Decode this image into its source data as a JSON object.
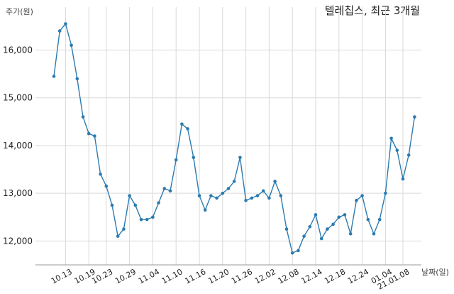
{
  "chart_data": {
    "type": "line",
    "title": "텔레칩스, 최근 3개월",
    "ylabel": "주가(원)",
    "xlabel": "날짜(일)",
    "ylim": [
      11500,
      16900
    ],
    "y_ticks": [
      12000,
      13000,
      14000,
      15000,
      16000
    ],
    "y_tick_labels": [
      "12,000",
      "13,000",
      "14,000",
      "15,000",
      "16,000"
    ],
    "x_tick_labels": [
      "10.13",
      "10.19",
      "10.23",
      "10.29",
      "11.04",
      "11.10",
      "11.16",
      "11.20",
      "11.26",
      "12.02",
      "12.08",
      "12.14",
      "12.18",
      "12.24",
      "01.04",
      "21.01.08"
    ],
    "x_tick_index": [
      2,
      6,
      9,
      13,
      17,
      21,
      25,
      29,
      33,
      37,
      41,
      45,
      49,
      53,
      57,
      60
    ],
    "grid": true,
    "color": "#2b7bb0",
    "values": [
      15450,
      16400,
      16550,
      16100,
      15400,
      14600,
      14250,
      14200,
      13400,
      13150,
      12750,
      12100,
      12250,
      12950,
      12750,
      12450,
      12450,
      12500,
      12800,
      13100,
      13050,
      13700,
      14450,
      14350,
      13750,
      12950,
      12650,
      12950,
      12900,
      13000,
      13100,
      13250,
      13750,
      12850,
      12900,
      12950,
      13050,
      12900,
      13250,
      12950,
      12250,
      11750,
      11800,
      12100,
      12300,
      12550,
      12050,
      12250,
      12350,
      12500,
      12550,
      12150,
      12850,
      12950,
      12450,
      12150,
      12450,
      13000,
      14150,
      13900,
      13300,
      13800,
      14600
    ]
  }
}
